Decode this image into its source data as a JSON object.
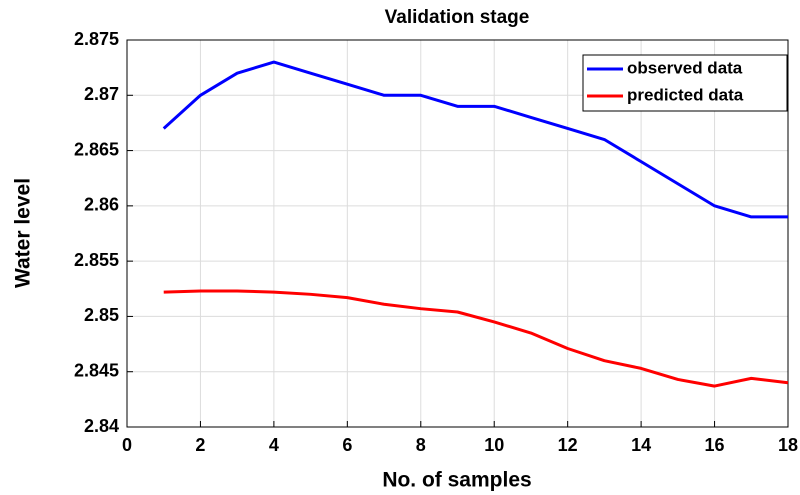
{
  "chart_data": {
    "type": "line",
    "title": "Validation stage",
    "xlabel": "No. of samples",
    "ylabel": "Water level",
    "x": [
      1,
      2,
      3,
      4,
      5,
      6,
      7,
      8,
      9,
      10,
      11,
      12,
      13,
      14,
      15,
      16,
      17,
      18
    ],
    "series": [
      {
        "name": "observed data",
        "color": "#0000ff",
        "values": [
          2.867,
          2.87,
          2.872,
          2.873,
          2.872,
          2.871,
          2.87,
          2.87,
          2.869,
          2.869,
          2.868,
          2.867,
          2.866,
          2.864,
          2.862,
          2.86,
          2.859,
          2.859
        ]
      },
      {
        "name": "predicted data",
        "color": "#ff0000",
        "values": [
          2.8522,
          2.8523,
          2.8523,
          2.8522,
          2.852,
          2.8517,
          2.8511,
          2.8507,
          2.8504,
          2.8495,
          2.8485,
          2.8471,
          2.846,
          2.8453,
          2.8443,
          2.8437,
          2.8444,
          2.844
        ]
      }
    ],
    "xlim": [
      0,
      18
    ],
    "xticks": [
      0,
      2,
      4,
      6,
      8,
      10,
      12,
      14,
      16,
      18
    ],
    "ylim": [
      2.84,
      2.875
    ],
    "yticks": [
      2.84,
      2.845,
      2.85,
      2.855,
      2.86,
      2.865,
      2.87,
      2.875
    ],
    "grid": true,
    "legend": "top-right"
  }
}
